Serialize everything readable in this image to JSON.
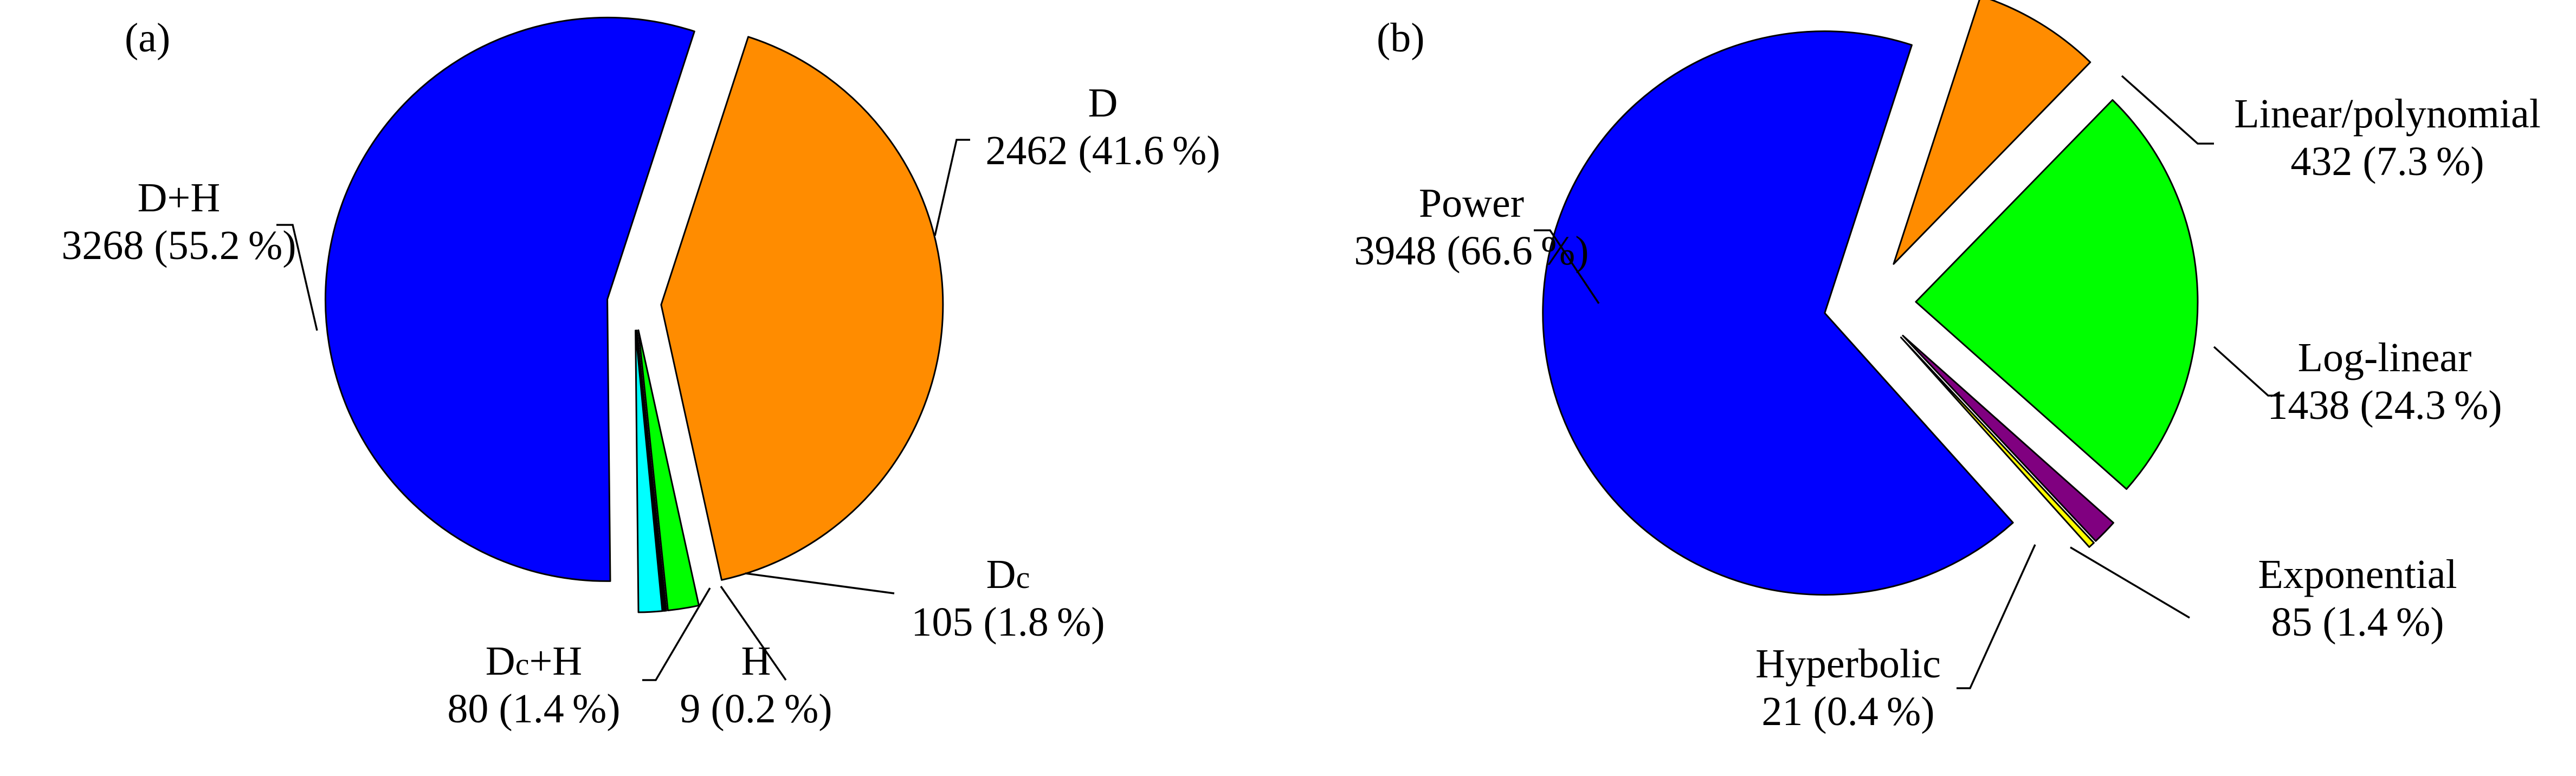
{
  "chart_data": [
    {
      "type": "pie",
      "panel_label": "(a)",
      "slices": [
        {
          "label": "D",
          "count": 2462,
          "percent": "41.6",
          "color": "#FF8C00"
        },
        {
          "label": "Dc",
          "count": 105,
          "percent": "1.8",
          "color": "#00FF00"
        },
        {
          "label": "H",
          "count": 9,
          "percent": "0.2",
          "color": "#000000"
        },
        {
          "label": "Dc+H",
          "count": 80,
          "percent": "1.4",
          "color": "#00FFFF"
        },
        {
          "label": "D+H",
          "count": 3268,
          "percent": "55.2",
          "color": "#0000FF"
        }
      ]
    },
    {
      "type": "pie",
      "panel_label": "(b)",
      "slices": [
        {
          "label": "Linear/polynomial",
          "count": 432,
          "percent": "7.3",
          "color": "#FF8C00"
        },
        {
          "label": "Log-linear",
          "count": 1438,
          "percent": "24.3",
          "color": "#00FF00"
        },
        {
          "label": "Exponential",
          "count": 85,
          "percent": "1.4",
          "color": "#800080"
        },
        {
          "label": "Hyperbolic",
          "count": 21,
          "percent": "0.4",
          "color": "#FFFF00"
        },
        {
          "label": "Power",
          "count": 3948,
          "percent": "66.6",
          "color": "#0000FF"
        }
      ]
    }
  ]
}
